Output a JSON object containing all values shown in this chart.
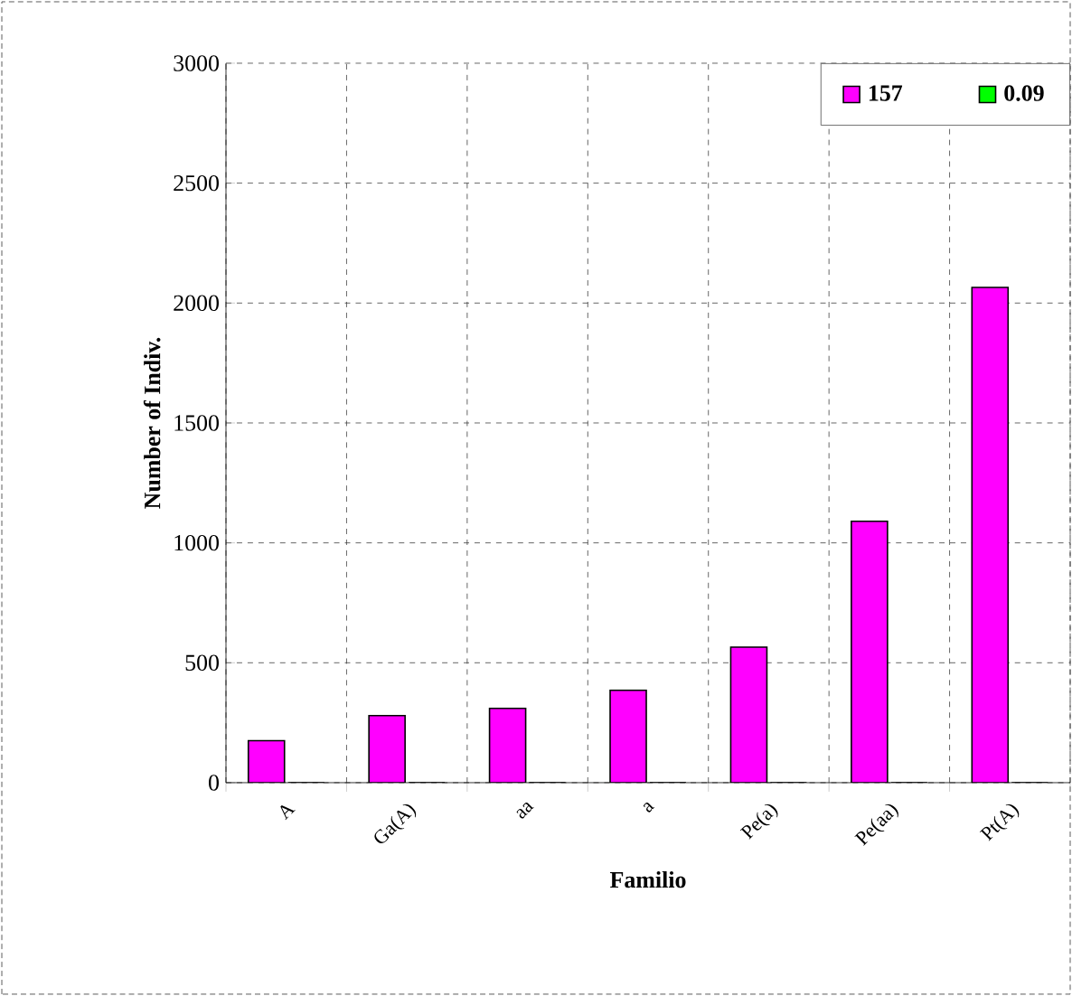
{
  "chart_data": {
    "type": "bar",
    "xlabel": "Familio",
    "ylabel": "Number of Indiv.",
    "categories": [
      "A",
      "Ga(A)",
      "aa",
      "a",
      "Pe(a)",
      "Pe(aa)",
      "Pt(A)"
    ],
    "series": [
      {
        "name": "157",
        "color": "#ff00ff",
        "values": [
          175,
          280,
          310,
          385,
          565,
          1090,
          2065
        ]
      },
      {
        "name": "0.09",
        "color": "#00ff00",
        "values": [
          0,
          0,
          0,
          0,
          0,
          0,
          0
        ]
      }
    ],
    "ylim": [
      0,
      3000
    ],
    "yticks": [
      0,
      500,
      1000,
      1500,
      2000,
      2500,
      3000
    ],
    "grid": true,
    "legend": "top right"
  }
}
